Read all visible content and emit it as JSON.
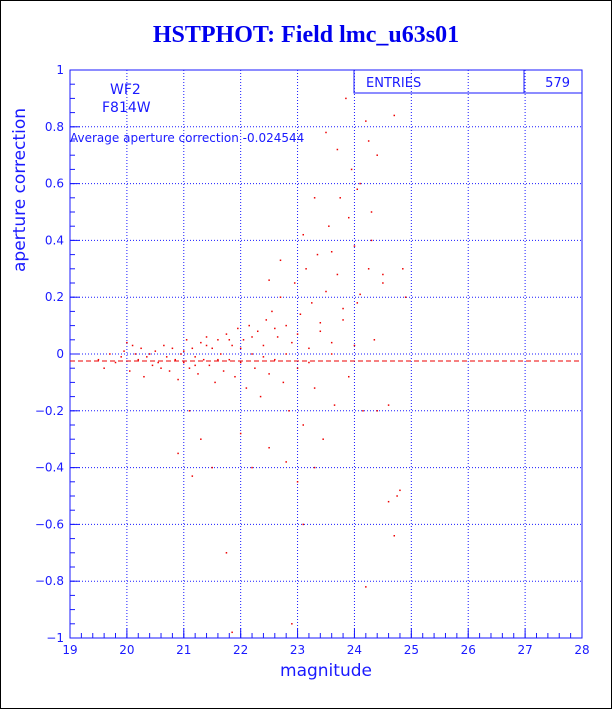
{
  "page": {
    "title": "HSTPHOT: Field lmc_u63s01"
  },
  "chart_data": {
    "type": "scatter",
    "title": "HSTPHOT: Field lmc_u63s01",
    "xlabel": "magnitude",
    "ylabel": "aperture correction",
    "xlim": [
      19,
      28
    ],
    "ylim": [
      -1,
      1
    ],
    "x_ticks": [
      19,
      20,
      21,
      22,
      23,
      24,
      25,
      26,
      27,
      28
    ],
    "y_ticks": [
      -1,
      -0.8,
      -0.6,
      -0.4,
      -0.2,
      0,
      0.2,
      0.4,
      0.6,
      0.8,
      1
    ],
    "grid": true,
    "labels": {
      "camera": "WF2",
      "filter": "F814W",
      "average_text": "Average aperture correction -0.024544"
    },
    "stats_box": {
      "label": "ENTRIES",
      "value": "579"
    },
    "average_line": -0.024544,
    "colors": {
      "axis": "#1a1aff",
      "points": "#ee0000",
      "title": "#0000ee"
    },
    "series": [
      {
        "points": [
          [
            19.5,
            -0.02
          ],
          [
            19.6,
            -0.05
          ],
          [
            19.7,
            0.0
          ],
          [
            19.8,
            -0.03
          ],
          [
            19.9,
            -0.01
          ],
          [
            19.95,
            0.01
          ],
          [
            20.0,
            0.04
          ],
          [
            20.05,
            -0.06
          ],
          [
            20.1,
            0.03
          ],
          [
            20.15,
            0.0
          ],
          [
            20.2,
            -0.02
          ],
          [
            20.25,
            0.02
          ],
          [
            20.3,
            -0.08
          ],
          [
            20.35,
            -0.01
          ],
          [
            20.4,
            0.0
          ],
          [
            20.45,
            -0.04
          ],
          [
            20.5,
            0.01
          ],
          [
            20.55,
            -0.03
          ],
          [
            20.6,
            -0.05
          ],
          [
            20.65,
            0.03
          ],
          [
            20.7,
            -0.01
          ],
          [
            20.75,
            -0.06
          ],
          [
            20.8,
            0.02
          ],
          [
            20.85,
            -0.02
          ],
          [
            20.9,
            -0.09
          ],
          [
            20.95,
            0.0
          ],
          [
            21.0,
            -0.03
          ],
          [
            21.05,
            0.05
          ],
          [
            21.1,
            -0.05
          ],
          [
            21.15,
            0.02
          ],
          [
            21.2,
            -0.01
          ],
          [
            21.25,
            -0.07
          ],
          [
            21.3,
            0.04
          ],
          [
            21.35,
            -0.02
          ],
          [
            21.4,
            0.06
          ],
          [
            21.45,
            -0.04
          ],
          [
            21.5,
            0.02
          ],
          [
            21.55,
            -0.1
          ],
          [
            21.6,
            0.05
          ],
          [
            21.65,
            0.0
          ],
          [
            21.7,
            -0.06
          ],
          [
            21.75,
            0.07
          ],
          [
            21.8,
            -0.02
          ],
          [
            21.85,
            0.03
          ],
          [
            21.9,
            -0.08
          ],
          [
            21.95,
            0.09
          ],
          [
            22.0,
            -0.03
          ],
          [
            22.05,
            0.05
          ],
          [
            22.1,
            -0.12
          ],
          [
            22.15,
            0.1
          ],
          [
            22.2,
            0.0
          ],
          [
            22.25,
            -0.05
          ],
          [
            22.3,
            0.08
          ],
          [
            22.35,
            -0.15
          ],
          [
            22.4,
            0.03
          ],
          [
            22.45,
            0.12
          ],
          [
            22.5,
            -0.07
          ],
          [
            22.55,
            0.15
          ],
          [
            22.6,
            -0.02
          ],
          [
            22.65,
            0.06
          ],
          [
            22.7,
            0.2
          ],
          [
            22.75,
            -0.1
          ],
          [
            22.8,
            0.1
          ],
          [
            22.85,
            -0.2
          ],
          [
            22.9,
            0.04
          ],
          [
            22.95,
            0.25
          ],
          [
            23.0,
            -0.05
          ],
          [
            23.05,
            0.14
          ],
          [
            23.1,
            -0.25
          ],
          [
            23.15,
            0.3
          ],
          [
            23.2,
            0.02
          ],
          [
            23.25,
            0.18
          ],
          [
            23.3,
            -0.12
          ],
          [
            23.35,
            0.35
          ],
          [
            23.4,
            0.08
          ],
          [
            23.45,
            -0.3
          ],
          [
            23.5,
            0.22
          ],
          [
            23.55,
            0.45
          ],
          [
            23.6,
            0.0
          ],
          [
            23.65,
            -0.18
          ],
          [
            23.7,
            0.28
          ],
          [
            23.75,
            0.55
          ],
          [
            23.8,
            0.12
          ],
          [
            23.85,
            0.9
          ],
          [
            23.9,
            -0.08
          ],
          [
            23.95,
            0.65
          ],
          [
            24.0,
            0.38
          ],
          [
            24.05,
            0.18
          ],
          [
            24.1,
            0.6
          ],
          [
            24.15,
            -0.2
          ],
          [
            24.2,
            0.82
          ],
          [
            24.25,
            0.3
          ],
          [
            24.3,
            0.5
          ],
          [
            24.35,
            0.05
          ],
          [
            24.4,
            0.7
          ],
          [
            24.5,
            0.25
          ],
          [
            24.6,
            -0.18
          ],
          [
            24.7,
            0.84
          ],
          [
            24.75,
            -0.5
          ],
          [
            24.85,
            0.3
          ],
          [
            20.9,
            -0.35
          ],
          [
            21.1,
            -0.2
          ],
          [
            21.15,
            -0.43
          ],
          [
            21.3,
            -0.3
          ],
          [
            21.5,
            -0.4
          ],
          [
            21.75,
            -0.7
          ],
          [
            21.85,
            -0.98
          ],
          [
            22.0,
            -0.28
          ],
          [
            22.2,
            -0.4
          ],
          [
            22.5,
            -0.33
          ],
          [
            22.8,
            -0.38
          ],
          [
            22.9,
            -0.95
          ],
          [
            23.0,
            -0.45
          ],
          [
            23.1,
            -0.6
          ],
          [
            23.3,
            -0.4
          ],
          [
            24.2,
            -0.82
          ],
          [
            24.4,
            -0.2
          ],
          [
            24.6,
            -0.52
          ],
          [
            24.7,
            -0.64
          ],
          [
            24.8,
            -0.48
          ],
          [
            21.0,
            0.01
          ],
          [
            21.2,
            -0.04
          ],
          [
            21.4,
            0.03
          ],
          [
            21.6,
            -0.02
          ],
          [
            21.8,
            0.05
          ],
          [
            22.0,
            0.02
          ],
          [
            22.2,
            0.06
          ],
          [
            22.4,
            -0.01
          ],
          [
            22.6,
            0.09
          ],
          [
            22.8,
            0.0
          ],
          [
            23.0,
            0.07
          ],
          [
            23.2,
            -0.03
          ],
          [
            23.4,
            0.11
          ],
          [
            23.6,
            0.04
          ],
          [
            23.8,
            0.16
          ],
          [
            24.0,
            0.03
          ],
          [
            24.1,
            0.21
          ],
          [
            24.3,
            0.4
          ],
          [
            24.5,
            0.28
          ],
          [
            24.9,
            0.2
          ],
          [
            23.5,
            0.78
          ],
          [
            23.7,
            0.72
          ],
          [
            23.9,
            0.48
          ],
          [
            24.05,
            0.58
          ],
          [
            24.25,
            0.75
          ],
          [
            23.3,
            0.55
          ],
          [
            23.1,
            0.42
          ],
          [
            23.6,
            0.36
          ],
          [
            22.7,
            0.33
          ],
          [
            22.5,
            0.26
          ]
        ]
      }
    ]
  }
}
